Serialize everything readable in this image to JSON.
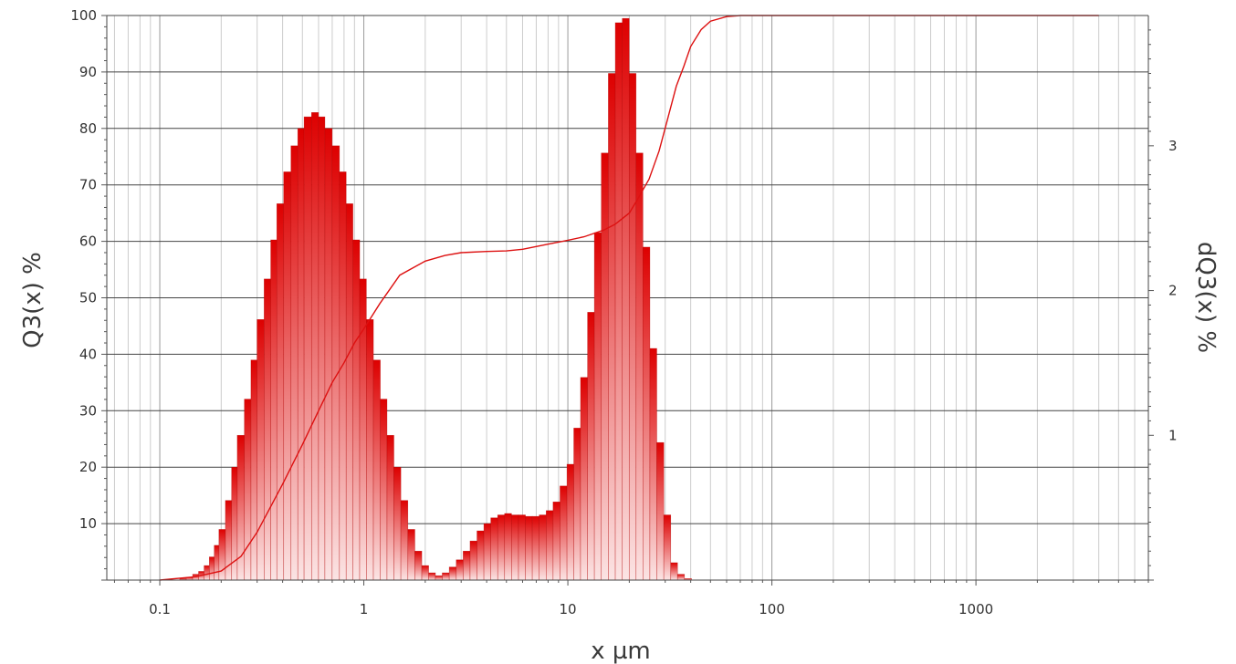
{
  "chart_data": {
    "type": "bar",
    "title": "",
    "xlabel": "x µm",
    "ylabel_left": "Q3(x) %",
    "ylabel_right": "dQ3(x) %",
    "x_scale": "log",
    "xlim": [
      0.055,
      7000
    ],
    "ylim_left": [
      0,
      100
    ],
    "ylim_right": [
      0,
      3.9
    ],
    "x_ticks": [
      {
        "value": 0.1,
        "label": "0.1"
      },
      {
        "value": 1,
        "label": "1"
      },
      {
        "value": 10,
        "label": "10"
      },
      {
        "value": 100,
        "label": "100"
      },
      {
        "value": 1000,
        "label": "1000"
      }
    ],
    "y_left_ticks": [
      "10",
      "20",
      "30",
      "40",
      "50",
      "60",
      "70",
      "80",
      "90",
      "100"
    ],
    "y_right_ticks": [
      "1",
      "2",
      "3"
    ],
    "grid": true,
    "colors": {
      "bar": "#dd0000",
      "bar_light": "#f8d4d4",
      "line": "#dd1111",
      "major_grid": "#444444",
      "minor_grid": "#bbbbbb"
    },
    "histogram": {
      "name": "dQ3(x) %",
      "axis": "right",
      "bins": [
        {
          "x": 0.13,
          "y": 0.01
        },
        {
          "x": 0.14,
          "y": 0.02
        },
        {
          "x": 0.15,
          "y": 0.04
        },
        {
          "x": 0.16,
          "y": 0.06
        },
        {
          "x": 0.17,
          "y": 0.1
        },
        {
          "x": 0.18,
          "y": 0.16
        },
        {
          "x": 0.19,
          "y": 0.24
        },
        {
          "x": 0.2,
          "y": 0.35
        },
        {
          "x": 0.22,
          "y": 0.55
        },
        {
          "x": 0.23,
          "y": 0.78
        },
        {
          "x": 0.25,
          "y": 1.0
        },
        {
          "x": 0.27,
          "y": 1.25
        },
        {
          "x": 0.29,
          "y": 1.52
        },
        {
          "x": 0.31,
          "y": 1.8
        },
        {
          "x": 0.34,
          "y": 2.08
        },
        {
          "x": 0.36,
          "y": 2.35
        },
        {
          "x": 0.39,
          "y": 2.6
        },
        {
          "x": 0.42,
          "y": 2.82
        },
        {
          "x": 0.46,
          "y": 3.0
        },
        {
          "x": 0.49,
          "y": 3.12
        },
        {
          "x": 0.53,
          "y": 3.2
        },
        {
          "x": 0.58,
          "y": 3.23
        },
        {
          "x": 0.62,
          "y": 3.2
        },
        {
          "x": 0.67,
          "y": 3.12
        },
        {
          "x": 0.73,
          "y": 3.0
        },
        {
          "x": 0.79,
          "y": 2.82
        },
        {
          "x": 0.85,
          "y": 2.6
        },
        {
          "x": 0.92,
          "y": 2.35
        },
        {
          "x": 0.99,
          "y": 2.08
        },
        {
          "x": 1.07,
          "y": 1.8
        },
        {
          "x": 1.16,
          "y": 1.52
        },
        {
          "x": 1.25,
          "y": 1.25
        },
        {
          "x": 1.35,
          "y": 1.0
        },
        {
          "x": 1.46,
          "y": 0.78
        },
        {
          "x": 1.58,
          "y": 0.55
        },
        {
          "x": 1.71,
          "y": 0.35
        },
        {
          "x": 1.85,
          "y": 0.2
        },
        {
          "x": 2.0,
          "y": 0.1
        },
        {
          "x": 2.16,
          "y": 0.05
        },
        {
          "x": 2.33,
          "y": 0.03
        },
        {
          "x": 2.52,
          "y": 0.05
        },
        {
          "x": 2.73,
          "y": 0.09
        },
        {
          "x": 2.95,
          "y": 0.14
        },
        {
          "x": 3.19,
          "y": 0.2
        },
        {
          "x": 3.45,
          "y": 0.27
        },
        {
          "x": 3.73,
          "y": 0.34
        },
        {
          "x": 4.03,
          "y": 0.39
        },
        {
          "x": 4.36,
          "y": 0.43
        },
        {
          "x": 4.71,
          "y": 0.45
        },
        {
          "x": 5.09,
          "y": 0.46
        },
        {
          "x": 5.51,
          "y": 0.45
        },
        {
          "x": 5.96,
          "y": 0.45
        },
        {
          "x": 6.44,
          "y": 0.44
        },
        {
          "x": 6.96,
          "y": 0.44
        },
        {
          "x": 7.53,
          "y": 0.45
        },
        {
          "x": 8.14,
          "y": 0.48
        },
        {
          "x": 8.8,
          "y": 0.54
        },
        {
          "x": 9.52,
          "y": 0.65
        },
        {
          "x": 10.3,
          "y": 0.8
        },
        {
          "x": 11.1,
          "y": 1.05
        },
        {
          "x": 12.0,
          "y": 1.4
        },
        {
          "x": 13.0,
          "y": 1.85
        },
        {
          "x": 14.0,
          "y": 2.4
        },
        {
          "x": 15.2,
          "y": 2.95
        },
        {
          "x": 16.4,
          "y": 3.5
        },
        {
          "x": 17.8,
          "y": 3.85
        },
        {
          "x": 19.2,
          "y": 3.88
        },
        {
          "x": 20.8,
          "y": 3.5
        },
        {
          "x": 22.4,
          "y": 2.95
        },
        {
          "x": 24.3,
          "y": 2.3
        },
        {
          "x": 26.2,
          "y": 1.6
        },
        {
          "x": 28.4,
          "y": 0.95
        },
        {
          "x": 30.7,
          "y": 0.45
        },
        {
          "x": 33.2,
          "y": 0.12
        },
        {
          "x": 35.8,
          "y": 0.04
        },
        {
          "x": 38.8,
          "y": 0.01
        }
      ]
    },
    "cumulative": {
      "name": "Q3(x) %",
      "axis": "left",
      "points": [
        [
          0.1,
          0
        ],
        [
          0.15,
          0.6
        ],
        [
          0.2,
          1.6
        ],
        [
          0.25,
          4.2
        ],
        [
          0.3,
          8.5
        ],
        [
          0.4,
          17
        ],
        [
          0.5,
          24
        ],
        [
          0.6,
          30
        ],
        [
          0.7,
          35
        ],
        [
          0.8,
          38.5
        ],
        [
          0.9,
          42
        ],
        [
          1.0,
          44.5
        ],
        [
          1.2,
          49
        ],
        [
          1.5,
          54
        ],
        [
          2.0,
          56.5
        ],
        [
          2.5,
          57.5
        ],
        [
          3.0,
          58
        ],
        [
          4.0,
          58.2
        ],
        [
          5.0,
          58.3
        ],
        [
          6.0,
          58.6
        ],
        [
          8.0,
          59.5
        ],
        [
          10.0,
          60.2
        ],
        [
          12.0,
          60.8
        ],
        [
          15.0,
          62
        ],
        [
          17.0,
          63
        ],
        [
          20.0,
          65
        ],
        [
          22.0,
          67.5
        ],
        [
          25.0,
          71
        ],
        [
          28.0,
          76
        ],
        [
          31.0,
          82
        ],
        [
          34.0,
          87.5
        ],
        [
          37.0,
          91
        ],
        [
          40.0,
          94.5
        ],
        [
          45.0,
          97.5
        ],
        [
          50.0,
          99
        ],
        [
          60.0,
          99.8
        ],
        [
          70.0,
          100
        ],
        [
          100.0,
          100
        ],
        [
          4000.0,
          100
        ]
      ]
    }
  }
}
